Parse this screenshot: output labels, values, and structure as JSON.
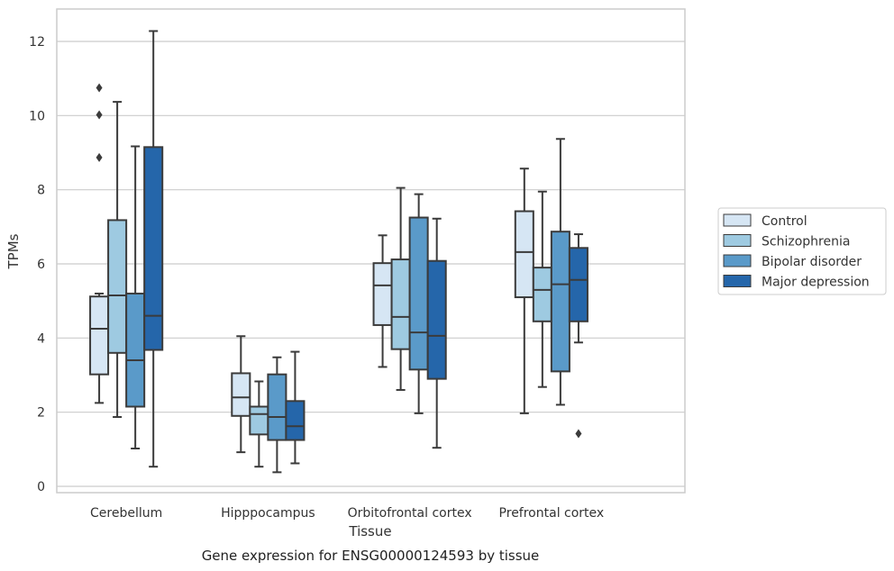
{
  "caption": "Gene expression for ENSG00000124593 by tissue",
  "chart_data": {
    "type": "box",
    "xlabel": "Tissue",
    "ylabel": "TPMs",
    "ylim": [
      -0.2,
      12.9
    ],
    "yticks": [
      0,
      2,
      4,
      6,
      8,
      10,
      12
    ],
    "grid": true,
    "legend_position": "right",
    "categories": [
      "Cerebellum",
      "Hipppocampus",
      "Orbitofrontal cortex",
      "Prefrontal cortex"
    ],
    "series": [
      {
        "name": "Control",
        "color": "#d6e6f4",
        "boxes": [
          {
            "whislo": 2.25,
            "q1": 3.02,
            "med": 4.25,
            "q3": 5.12,
            "whishi": 5.2,
            "fliers": []
          },
          {
            "whislo": 0.92,
            "q1": 1.9,
            "med": 2.4,
            "q3": 3.05,
            "whishi": 4.05,
            "fliers": []
          },
          {
            "whislo": 3.22,
            "q1": 4.35,
            "med": 5.42,
            "q3": 6.02,
            "whishi": 6.77,
            "fliers": []
          },
          {
            "whislo": 1.97,
            "q1": 5.1,
            "med": 6.32,
            "q3": 7.42,
            "whishi": 8.57,
            "fliers": []
          }
        ]
      },
      {
        "name": "Schizophrenia",
        "color": "#9ecae1",
        "boxes": [
          {
            "whislo": 1.87,
            "q1": 3.6,
            "med": 5.15,
            "q3": 7.18,
            "whishi": 10.37,
            "fliers": []
          },
          {
            "whislo": 0.53,
            "q1": 1.4,
            "med": 1.95,
            "q3": 2.15,
            "whishi": 2.83,
            "fliers": []
          },
          {
            "whislo": 2.6,
            "q1": 3.7,
            "med": 4.57,
            "q3": 6.12,
            "whishi": 8.05,
            "fliers": []
          },
          {
            "whislo": 2.68,
            "q1": 4.45,
            "med": 5.3,
            "q3": 5.9,
            "whishi": 7.95,
            "fliers": []
          }
        ]
      },
      {
        "name": "Bipolar disorder",
        "color": "#5a9ac9",
        "boxes": [
          {
            "whislo": 1.02,
            "q1": 2.15,
            "med": 3.4,
            "q3": 5.2,
            "whishi": 9.17,
            "fliers": []
          },
          {
            "whislo": 0.38,
            "q1": 1.25,
            "med": 1.87,
            "q3": 3.02,
            "whishi": 3.48,
            "fliers": []
          },
          {
            "whislo": 1.97,
            "q1": 3.15,
            "med": 4.15,
            "q3": 7.25,
            "whishi": 7.88,
            "fliers": []
          },
          {
            "whislo": 2.2,
            "q1": 3.1,
            "med": 5.45,
            "q3": 6.87,
            "whishi": 9.37,
            "fliers": []
          }
        ]
      },
      {
        "name": "Major depression",
        "color": "#2566aa",
        "boxes": [
          {
            "whislo": 0.53,
            "q1": 3.68,
            "med": 4.6,
            "q3": 9.15,
            "whishi": 12.28,
            "fliers": []
          },
          {
            "whislo": 0.62,
            "q1": 1.25,
            "med": 1.62,
            "q3": 2.3,
            "whishi": 3.63,
            "fliers": []
          },
          {
            "whislo": 1.04,
            "q1": 2.9,
            "med": 4.06,
            "q3": 6.08,
            "whishi": 7.22,
            "fliers": []
          },
          {
            "whislo": 3.88,
            "q1": 4.45,
            "med": 5.57,
            "q3": 6.43,
            "whishi": 6.8,
            "fliers": [
              1.42
            ]
          }
        ]
      }
    ],
    "cerebellum_control_fliers": [
      10.75,
      10.02,
      8.87
    ]
  }
}
